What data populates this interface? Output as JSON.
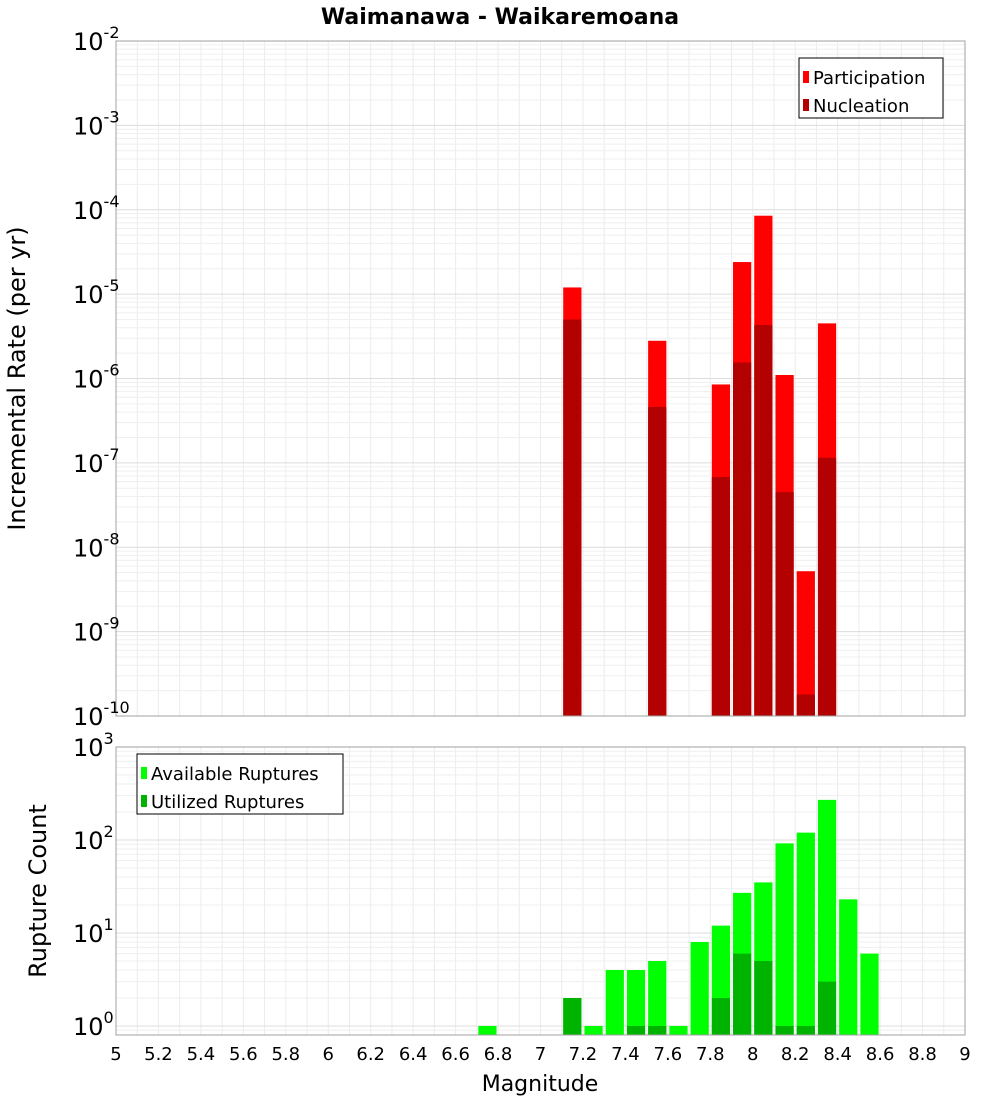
{
  "chart_data": [
    {
      "type": "bar",
      "title": "Waimanawa - Waikaremoana",
      "xlabel": "Magnitude",
      "ylabel": "Incremental Rate (per yr)",
      "yscale": "log",
      "ylim": [
        1e-10,
        0.01
      ],
      "xlim": [
        5.0,
        9.0
      ],
      "bin_width": 0.1,
      "y_ticks": [
        {
          "base": "10",
          "exp": "-10"
        },
        {
          "base": "10",
          "exp": "-9"
        },
        {
          "base": "10",
          "exp": "-8"
        },
        {
          "base": "10",
          "exp": "-7"
        },
        {
          "base": "10",
          "exp": "-6"
        },
        {
          "base": "10",
          "exp": "-5"
        },
        {
          "base": "10",
          "exp": "-4"
        },
        {
          "base": "10",
          "exp": "-3"
        },
        {
          "base": "10",
          "exp": "-2"
        }
      ],
      "legend_position": "top-right",
      "series": [
        {
          "name": "Participation",
          "color": "#ff0000",
          "points": [
            {
              "x": 7.15,
              "y": 1.2e-05
            },
            {
              "x": 7.55,
              "y": 2.8e-06
            },
            {
              "x": 7.85,
              "y": 8.5e-07
            },
            {
              "x": 7.95,
              "y": 2.4e-05
            },
            {
              "x": 8.05,
              "y": 8.5e-05
            },
            {
              "x": 8.15,
              "y": 1.1e-06
            },
            {
              "x": 8.25,
              "y": 5.2e-09
            },
            {
              "x": 8.35,
              "y": 4.5e-06
            }
          ]
        },
        {
          "name": "Nucleation",
          "color": "#b30000",
          "points": [
            {
              "x": 7.15,
              "y": 5e-06
            },
            {
              "x": 7.55,
              "y": 4.6e-07
            },
            {
              "x": 7.85,
              "y": 6.8e-08
            },
            {
              "x": 7.95,
              "y": 1.55e-06
            },
            {
              "x": 8.05,
              "y": 4.3e-06
            },
            {
              "x": 8.15,
              "y": 4.5e-08
            },
            {
              "x": 8.25,
              "y": 1.8e-10
            },
            {
              "x": 8.35,
              "y": 1.15e-07
            }
          ]
        }
      ]
    },
    {
      "type": "bar",
      "xlabel": "Magnitude",
      "ylabel": "Rupture Count",
      "yscale": "log",
      "ylim": [
        0.8,
        1000
      ],
      "xlim": [
        5.0,
        9.0
      ],
      "bin_width": 0.1,
      "x_ticks": [
        "5",
        "5.2",
        "5.4",
        "5.6",
        "5.8",
        "6",
        "6.2",
        "6.4",
        "6.6",
        "6.8",
        "7",
        "7.2",
        "7.4",
        "7.6",
        "7.8",
        "8",
        "8.2",
        "8.4",
        "8.6",
        "8.8",
        "9"
      ],
      "y_ticks": [
        {
          "base": "10",
          "exp": "0"
        },
        {
          "base": "10",
          "exp": "1"
        },
        {
          "base": "10",
          "exp": "2"
        },
        {
          "base": "10",
          "exp": "3"
        }
      ],
      "legend_position": "top-left",
      "series": [
        {
          "name": "Available Ruptures",
          "color": "#00ff00",
          "points": [
            {
              "x": 6.75,
              "y": 1
            },
            {
              "x": 7.15,
              "y": 2
            },
            {
              "x": 7.25,
              "y": 1
            },
            {
              "x": 7.35,
              "y": 4
            },
            {
              "x": 7.45,
              "y": 4
            },
            {
              "x": 7.55,
              "y": 5
            },
            {
              "x": 7.65,
              "y": 1
            },
            {
              "x": 7.75,
              "y": 8
            },
            {
              "x": 7.85,
              "y": 12
            },
            {
              "x": 7.95,
              "y": 27
            },
            {
              "x": 8.05,
              "y": 35
            },
            {
              "x": 8.15,
              "y": 92
            },
            {
              "x": 8.25,
              "y": 120
            },
            {
              "x": 8.35,
              "y": 270
            },
            {
              "x": 8.45,
              "y": 23
            },
            {
              "x": 8.55,
              "y": 6
            }
          ]
        },
        {
          "name": "Utilized Ruptures",
          "color": "#00b300",
          "points": [
            {
              "x": 7.15,
              "y": 2
            },
            {
              "x": 7.45,
              "y": 1
            },
            {
              "x": 7.55,
              "y": 1
            },
            {
              "x": 7.85,
              "y": 2
            },
            {
              "x": 7.95,
              "y": 6
            },
            {
              "x": 8.05,
              "y": 5
            },
            {
              "x": 8.15,
              "y": 1
            },
            {
              "x": 8.25,
              "y": 1
            },
            {
              "x": 8.35,
              "y": 3
            }
          ]
        }
      ]
    }
  ]
}
